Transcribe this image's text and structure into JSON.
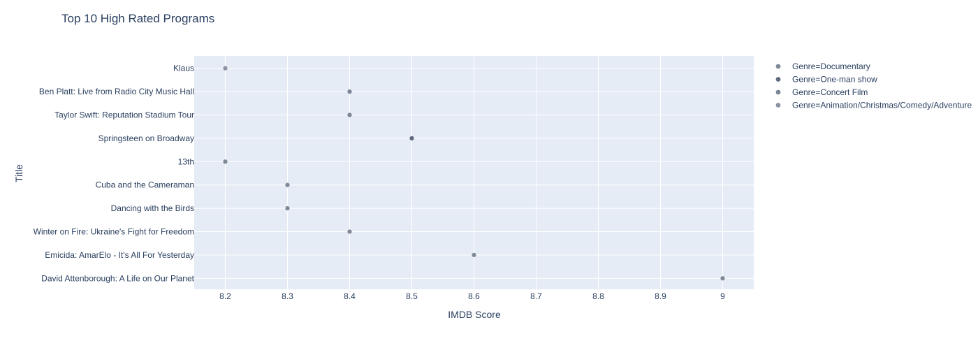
{
  "chart_data": {
    "type": "scatter",
    "title": "Top 10 High Rated Programs",
    "xlabel": "IMDB Score",
    "ylabel": "Title",
    "xlim": [
      8.15,
      9.05
    ],
    "x_ticks": [
      "8.2",
      "8.3",
      "8.4",
      "8.5",
      "8.6",
      "8.7",
      "8.8",
      "8.9",
      "9"
    ],
    "categories": [
      "Klaus",
      "Ben Platt: Live from Radio City Music Hall",
      "Taylor Swift: Reputation Stadium Tour",
      "Springsteen on Broadway",
      "13th",
      "Cuba and the Cameraman",
      "Dancing with the Birds",
      "Winter on Fire: Ukraine's Fight for Freedom",
      "Emicida: AmarElo - It's All For Yesterday",
      "David Attenborough: A Life on Our Planet"
    ],
    "series": [
      {
        "name": "Genre=Documentary",
        "color": "#7f8a99",
        "points": [
          {
            "title": "13th",
            "x": 8.2
          },
          {
            "title": "Cuba and the Cameraman",
            "x": 8.3
          },
          {
            "title": "Dancing with the Birds",
            "x": 8.3
          },
          {
            "title": "Winter on Fire: Ukraine's Fight for Freedom",
            "x": 8.4
          },
          {
            "title": "Emicida: AmarElo - It's All For Yesterday",
            "x": 8.6
          },
          {
            "title": "David Attenborough: A Life on Our Planet",
            "x": 9.0
          }
        ]
      },
      {
        "name": "Genre=One-man show",
        "color": "#5f6b7d",
        "points": [
          {
            "title": "Springsteen on Broadway",
            "x": 8.5
          }
        ]
      },
      {
        "name": "Genre=Concert Film",
        "color": "#7a8596",
        "points": [
          {
            "title": "Ben Platt: Live from Radio City Music Hall",
            "x": 8.4
          },
          {
            "title": "Taylor Swift: Reputation Stadium Tour",
            "x": 8.4
          }
        ]
      },
      {
        "name": "Genre=Animation/Christmas/Comedy/Adventure",
        "color": "#8a93a3",
        "points": [
          {
            "title": "Klaus",
            "x": 8.2
          }
        ]
      }
    ],
    "grid": true,
    "legend_position": "top-right",
    "plot_background": "#e5ecf6"
  }
}
